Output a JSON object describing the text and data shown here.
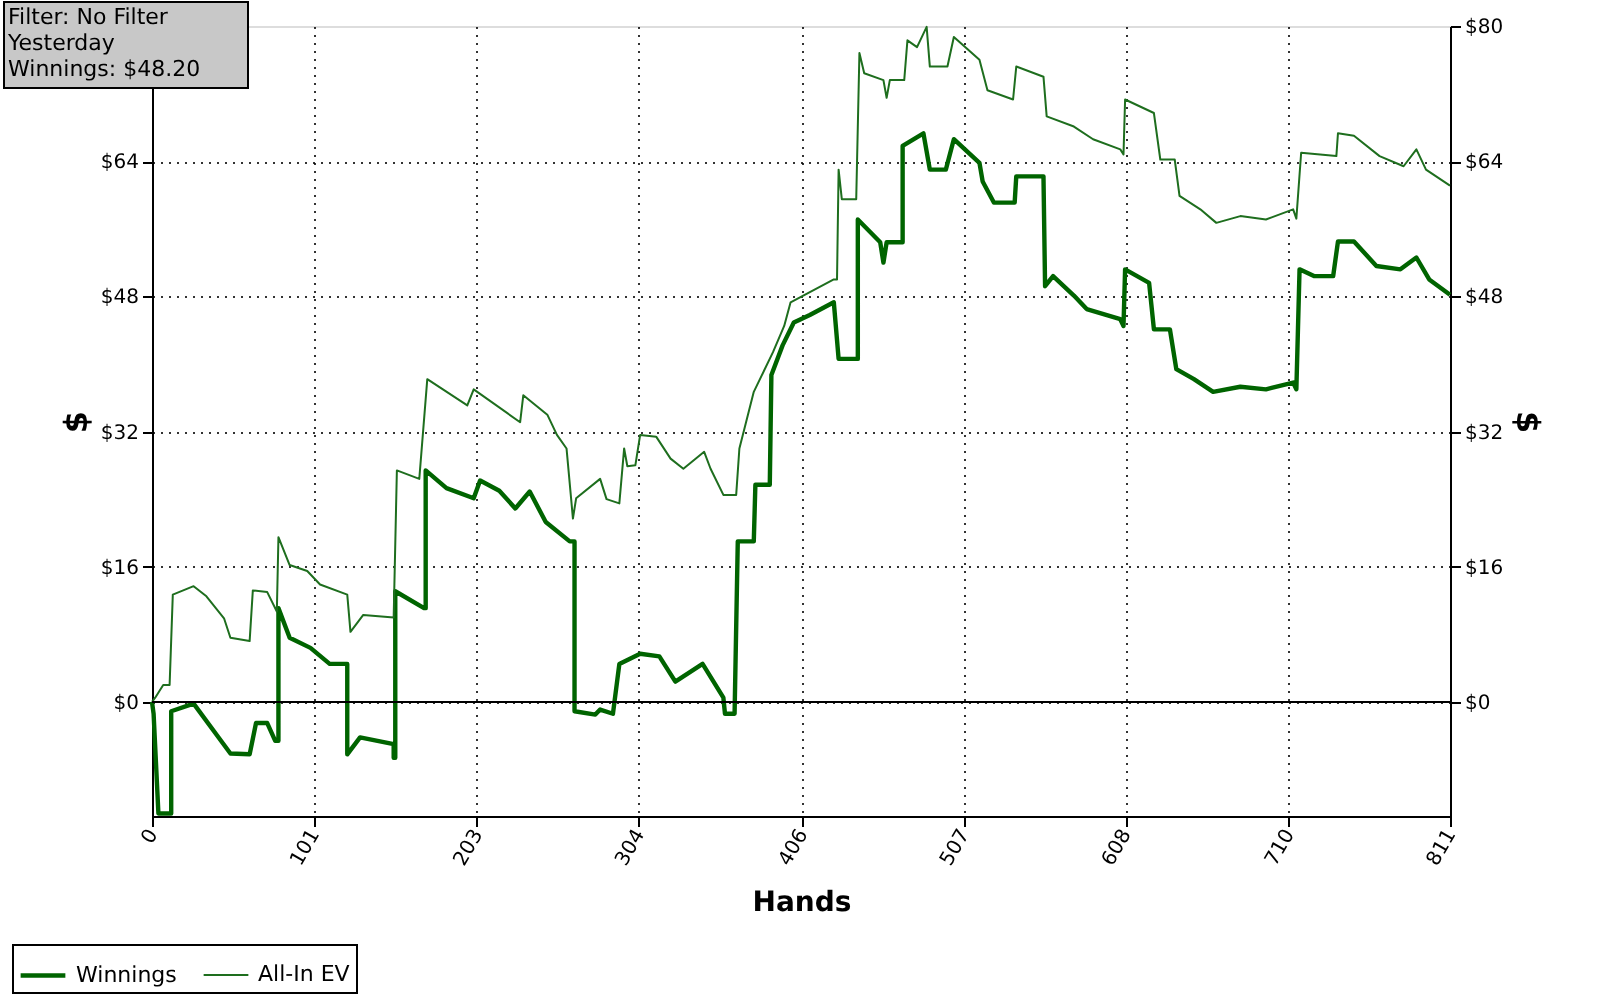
{
  "chart_data": {
    "type": "line",
    "xlabel": "Hands",
    "ylabel": "$",
    "y2label": "$",
    "annotations": [
      "Filter: No Filter",
      "Yesterday",
      "Winnings: $48.20"
    ],
    "xlim": [
      0,
      811
    ],
    "xticks": [
      0,
      101,
      203,
      304,
      406,
      507,
      608,
      710,
      811
    ],
    "ylim": [
      -13.5,
      80
    ],
    "yticks": [
      {
        "value": 0,
        "label": "$0"
      },
      {
        "value": 16,
        "label": "$16"
      },
      {
        "value": 32,
        "label": "$32"
      },
      {
        "value": 48,
        "label": "$48"
      },
      {
        "value": 64,
        "label": "$64"
      }
    ],
    "y2lim": [
      -13.5,
      80
    ],
    "y2ticks": [
      {
        "value": 0,
        "label": "$0"
      },
      {
        "value": 16,
        "label": "$16"
      },
      {
        "value": 32,
        "label": "$32"
      },
      {
        "value": 48,
        "label": "$48"
      },
      {
        "value": 64,
        "label": "$64"
      },
      {
        "value": 80,
        "label": "$80"
      }
    ],
    "grid": true,
    "legend": "bottom left",
    "line_style": "solid",
    "marker": "none",
    "ref_lines": [
      {
        "axis": "y",
        "value": 0,
        "label": null,
        "color": "#000000"
      }
    ],
    "series": [
      {
        "name": "Winnings",
        "color": "#006400",
        "x": [
          0,
          1,
          4,
          12,
          12,
          26,
          40,
          49,
          61,
          65,
          72,
          77,
          79,
          79,
          86,
          99,
          111,
          122,
          122,
          130,
          151,
          151,
          152,
          152,
          170,
          171,
          171,
          184,
          201,
          205,
          217,
          227,
          236,
          246,
          261,
          264,
          264,
          277,
          280,
          288,
          292,
          305,
          317,
          327,
          344,
          357,
          358,
          364,
          366,
          376,
          377,
          386,
          387,
          394,
          401,
          411,
          426,
          429,
          441,
          441,
          455,
          457,
          459,
          469,
          469,
          482,
          486,
          496,
          501,
          517,
          519,
          526,
          539,
          540,
          557,
          558,
          563,
          576,
          584,
          605,
          607,
          608,
          623,
          626,
          636,
          640,
          651,
          663,
          680,
          696,
          713,
          715,
          717,
          726,
          738,
          741,
          751,
          765,
          780,
          790,
          798,
          811
        ],
        "values": [
          0,
          -1.4,
          -13.2,
          -13.2,
          -1.1,
          -0.2,
          -3.8,
          -6.1,
          -6.2,
          -2.5,
          -2.5,
          -4.6,
          -4.6,
          11.1,
          7.6,
          6.4,
          4.5,
          4.5,
          -6.2,
          -4.2,
          -5.0,
          -6.6,
          -6.6,
          13.1,
          11.1,
          11.1,
          27.4,
          25.3,
          24.1,
          26.2,
          25.0,
          22.9,
          24.9,
          21.3,
          19.0,
          19.0,
          -1.1,
          -1.5,
          -0.9,
          -1.4,
          4.5,
          5.7,
          5.4,
          2.4,
          4.5,
          0.5,
          -1.4,
          -1.4,
          19.0,
          19.0,
          25.7,
          25.7,
          38.7,
          42.2,
          44.9,
          45.8,
          47.3,
          40.6,
          40.6,
          57.1,
          54.4,
          52.0,
          54.4,
          54.4,
          65.8,
          67.3,
          63.0,
          63.0,
          66.6,
          63.8,
          61.6,
          59.1,
          59.1,
          62.2,
          62.2,
          49.2,
          50.4,
          48.1,
          46.5,
          45.3,
          44.5,
          51.2,
          49.6,
          44.1,
          44.1,
          39.4,
          38.2,
          36.7,
          37.3,
          37.0,
          37.8,
          37.0,
          51.2,
          50.4,
          50.4,
          54.5,
          54.5,
          51.6,
          51.2,
          52.6,
          50.0,
          48.2
        ]
      },
      {
        "name": "All-In EV",
        "color": "#1e6e1e",
        "x": [
          0,
          2,
          7,
          11,
          13,
          26,
          34,
          45,
          49,
          61,
          63,
          72,
          78,
          79,
          86,
          97,
          105,
          122,
          124,
          132,
          151,
          153,
          167,
          172,
          197,
          201,
          230,
          232,
          247,
          253,
          259,
          263,
          265,
          280,
          284,
          292,
          295,
          297,
          302,
          305,
          315,
          324,
          332,
          345,
          349,
          357,
          365,
          367,
          376,
          388,
          395,
          399,
          426,
          428,
          429,
          431,
          440,
          442,
          445,
          457,
          459,
          461,
          470,
          472,
          478,
          484,
          486,
          497,
          501,
          517,
          522,
          538,
          540,
          557,
          559,
          576,
          588,
          605,
          607,
          608,
          626,
          630,
          639,
          642,
          655,
          665,
          680,
          696,
          713,
          715,
          718,
          740,
          741,
          751,
          767,
          782,
          790,
          796,
          811
        ],
        "values": [
          0,
          0.5,
          2.0,
          2.0,
          12.7,
          13.7,
          12.5,
          9.9,
          7.6,
          7.2,
          13.2,
          13.0,
          10.7,
          19.5,
          16.2,
          15.5,
          13.9,
          12.7,
          8.3,
          10.3,
          10.0,
          27.4,
          26.4,
          38.2,
          35.1,
          37.0,
          33.1,
          36.3,
          34.0,
          31.6,
          30.0,
          21.7,
          24.1,
          26.4,
          24.0,
          23.5,
          30.0,
          27.9,
          28.0,
          31.6,
          31.4,
          28.8,
          27.6,
          29.6,
          27.6,
          24.5,
          24.5,
          30.0,
          36.7,
          41.4,
          44.5,
          47.3,
          50.0,
          50.0,
          63.0,
          59.5,
          59.5,
          76.8,
          74.4,
          73.6,
          71.5,
          73.6,
          73.6,
          78.3,
          77.5,
          79.9,
          75.2,
          75.2,
          78.7,
          76.0,
          72.4,
          71.3,
          75.2,
          74.0,
          69.3,
          68.1,
          66.6,
          65.4,
          64.8,
          71.3,
          69.7,
          64.2,
          64.2,
          59.9,
          58.3,
          56.7,
          57.5,
          57.1,
          58.3,
          57.2,
          65.0,
          64.6,
          67.3,
          67.0,
          64.6,
          63.4,
          65.4,
          63.0,
          61.1
        ]
      }
    ]
  }
}
